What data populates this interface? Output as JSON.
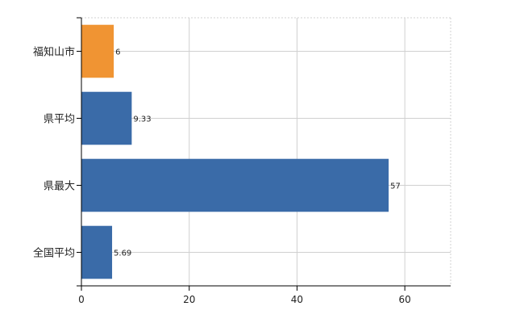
{
  "chart_data": {
    "type": "bar",
    "orientation": "horizontal",
    "categories": [
      "福知山市",
      "県平均",
      "県最大",
      "全国平均"
    ],
    "values": [
      6,
      9.33,
      57,
      5.69
    ],
    "data_labels": [
      "6",
      "9.33",
      "57",
      "5.69"
    ],
    "highlight_category": "福知山市",
    "colors": {
      "highlight": "#F09433",
      "default": "#3A6BA8"
    },
    "xlim": [
      0,
      68.5
    ],
    "xticks": [
      0,
      20,
      40,
      60
    ],
    "grid": true,
    "title": "",
    "xlabel": "",
    "ylabel": ""
  }
}
